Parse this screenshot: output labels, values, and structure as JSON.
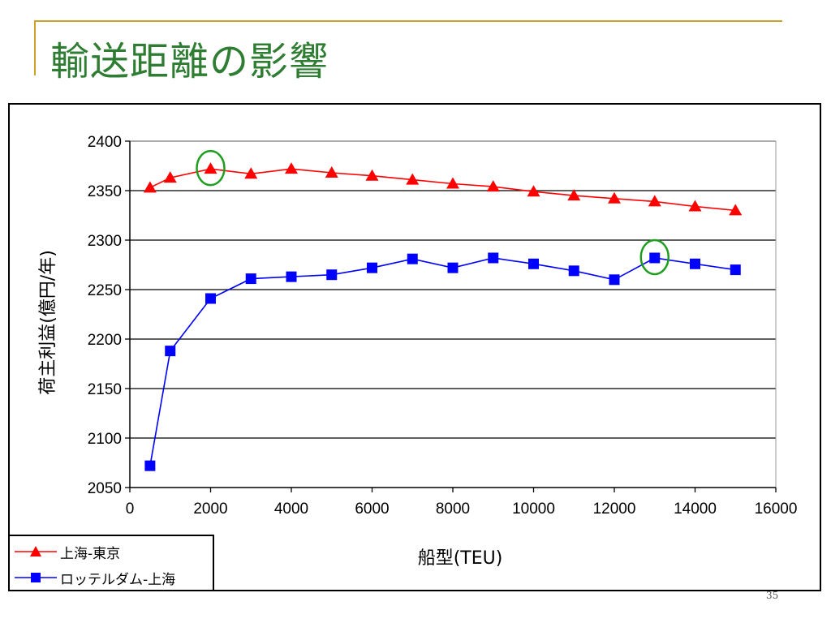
{
  "slide": {
    "title": "輸送距離の影響",
    "page_number": "35"
  },
  "chart_data": {
    "type": "line",
    "title": "",
    "xlabel": "船型(TEU)",
    "ylabel": "荷主利益(億円/年)",
    "xlim": [
      0,
      16000
    ],
    "ylim": [
      2050,
      2400
    ],
    "x_ticks": [
      0,
      2000,
      4000,
      6000,
      8000,
      10000,
      12000,
      14000,
      16000
    ],
    "y_ticks": [
      2050,
      2100,
      2150,
      2200,
      2250,
      2300,
      2350,
      2400
    ],
    "grid": "horizontal",
    "legend_position": "bottom-left",
    "series": [
      {
        "name": "上海-東京",
        "color": "#ff0000",
        "marker": "triangle",
        "x": [
          500,
          1000,
          2000,
          3000,
          4000,
          5000,
          6000,
          7000,
          8000,
          9000,
          10000,
          11000,
          12000,
          13000,
          14000,
          15000
        ],
        "values": [
          2353,
          2363,
          2372,
          2367,
          2372,
          2368,
          2365,
          2361,
          2357,
          2354,
          2349,
          2345,
          2342,
          2339,
          2334,
          2330
        ]
      },
      {
        "name": "ロッテルダム-上海",
        "color": "#0000ff",
        "marker": "square",
        "x": [
          500,
          1000,
          2000,
          3000,
          4000,
          5000,
          6000,
          7000,
          8000,
          9000,
          10000,
          11000,
          12000,
          13000,
          14000,
          15000
        ],
        "values": [
          2072,
          2188,
          2241,
          2261,
          2263,
          2265,
          2272,
          2281,
          2272,
          2282,
          2276,
          2269,
          2260,
          2282,
          2276,
          2270
        ]
      }
    ],
    "highlights": [
      {
        "series": 0,
        "x": 2000,
        "value": 2372,
        "color": "#1e9e1e"
      },
      {
        "series": 1,
        "x": 13000,
        "value": 2282,
        "color": "#1e9e1e"
      }
    ]
  }
}
